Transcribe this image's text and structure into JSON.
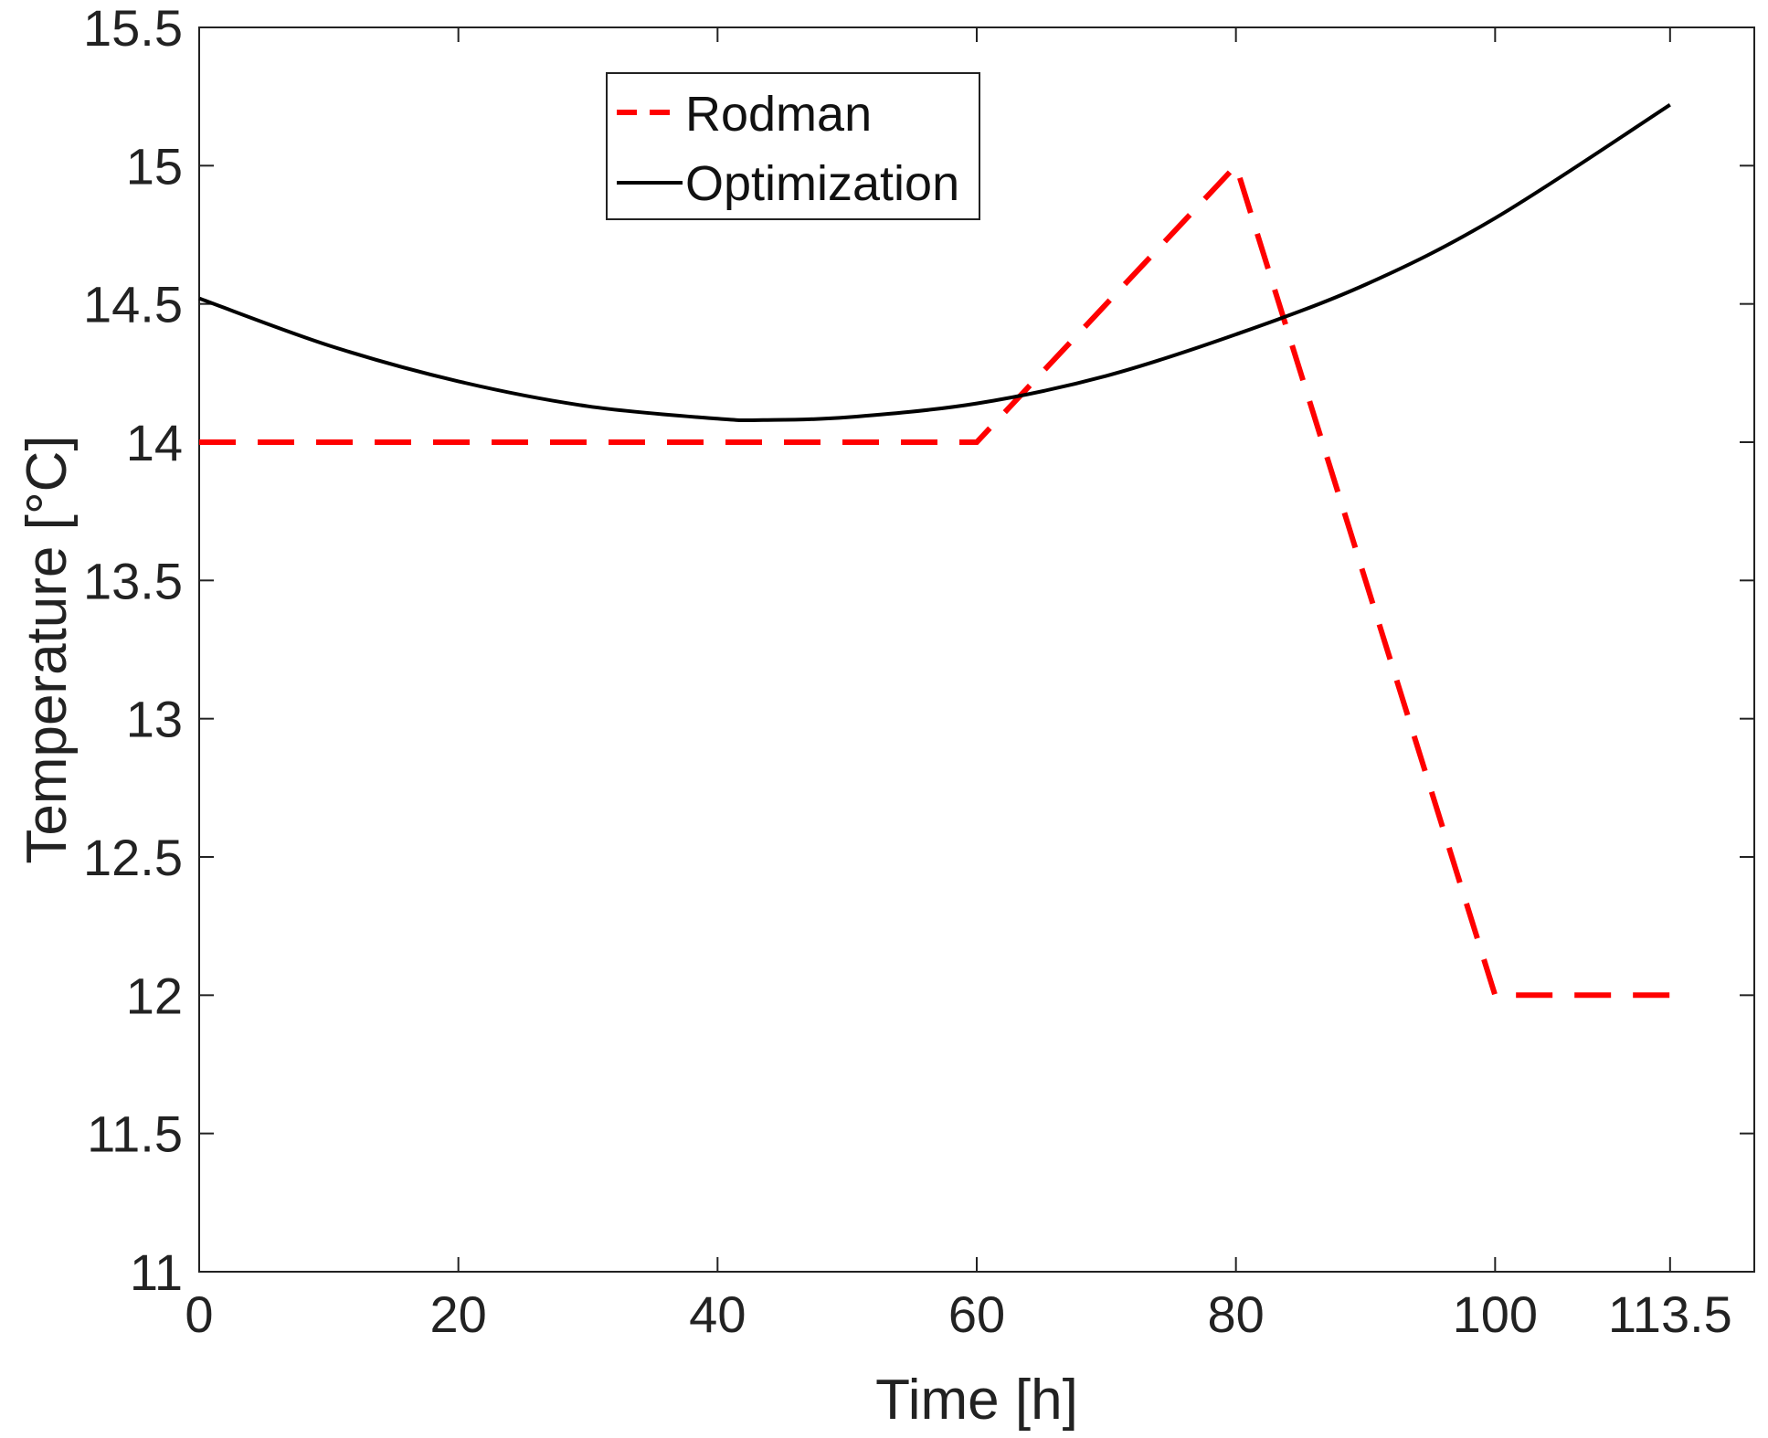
{
  "chart_data": {
    "type": "line",
    "title": "",
    "xlabel": "Time [h]",
    "ylabel": "Temperature [°C]",
    "xlim": [
      0,
      120
    ],
    "ylim": [
      11,
      15.5
    ],
    "xticks": [
      0,
      20,
      40,
      60,
      80,
      100,
      113.5
    ],
    "xtick_labels": [
      "0",
      "20",
      "40",
      "60",
      "80",
      "100",
      "113.5"
    ],
    "yticks": [
      11,
      11.5,
      12,
      12.5,
      13,
      13.5,
      14,
      14.5,
      15,
      15.5
    ],
    "ytick_labels": [
      "11",
      "11.5",
      "12",
      "12.5",
      "13",
      "13.5",
      "14",
      "14.5",
      "15",
      "15.5"
    ],
    "grid": false,
    "legend_position": "top-center",
    "series": [
      {
        "name": "Rodman",
        "color": "#ff0000",
        "style": "dashed",
        "x": [
          0,
          60,
          80,
          100,
          113.5
        ],
        "y": [
          14,
          14,
          15,
          12,
          12
        ]
      },
      {
        "name": "Optimization",
        "color": "#000000",
        "style": "solid",
        "x": [
          0,
          10,
          20,
          30,
          40,
          43.5,
          50,
          60,
          70,
          80,
          90,
          100,
          113.5
        ],
        "y": [
          14.52,
          14.35,
          14.22,
          14.13,
          14.085,
          14.08,
          14.09,
          14.14,
          14.24,
          14.39,
          14.57,
          14.81,
          15.22
        ]
      }
    ]
  }
}
